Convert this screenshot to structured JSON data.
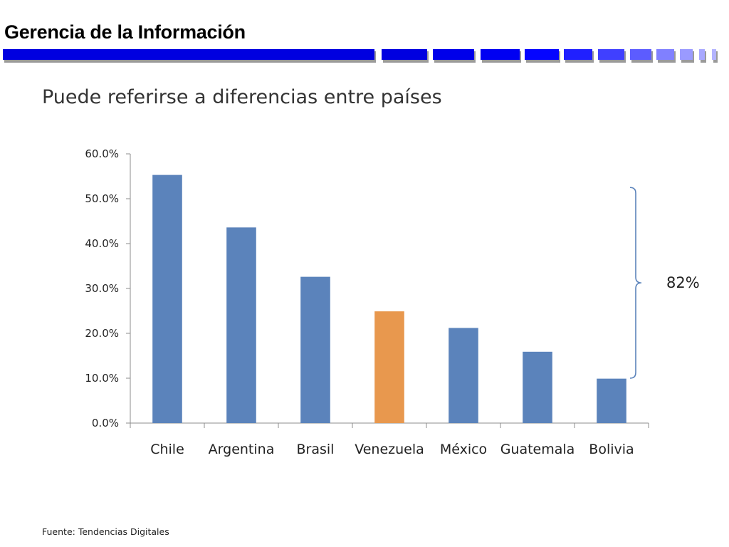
{
  "header": {
    "title": "Gerencia de la Información",
    "bar_color": "#0000e0"
  },
  "slide": {
    "subtitle": "Puede referirse a diferencias entre países",
    "source": "Fuente: Tendencias Digitales"
  },
  "chart_data": {
    "type": "bar",
    "categories": [
      "Chile",
      "Argentina",
      "Brasil",
      "Venezuela",
      "México",
      "Guatemala",
      "Bolivia"
    ],
    "values": [
      55.3,
      43.6,
      32.6,
      24.9,
      21.2,
      15.9,
      9.9
    ],
    "y_tick_labels": [
      "0.0%",
      "10.0%",
      "20.0%",
      "30.0%",
      "40.0%",
      "50.0%",
      "60.0%"
    ],
    "ylim": [
      0,
      60
    ],
    "grid": false,
    "bar_color": "#5b83bb",
    "highlight_category": "Venezuela",
    "highlight_color": "#e8984e",
    "annotation": {
      "text": "82%",
      "brace_color": "#5b83bb",
      "range": [
        10.0,
        52.5
      ]
    }
  }
}
